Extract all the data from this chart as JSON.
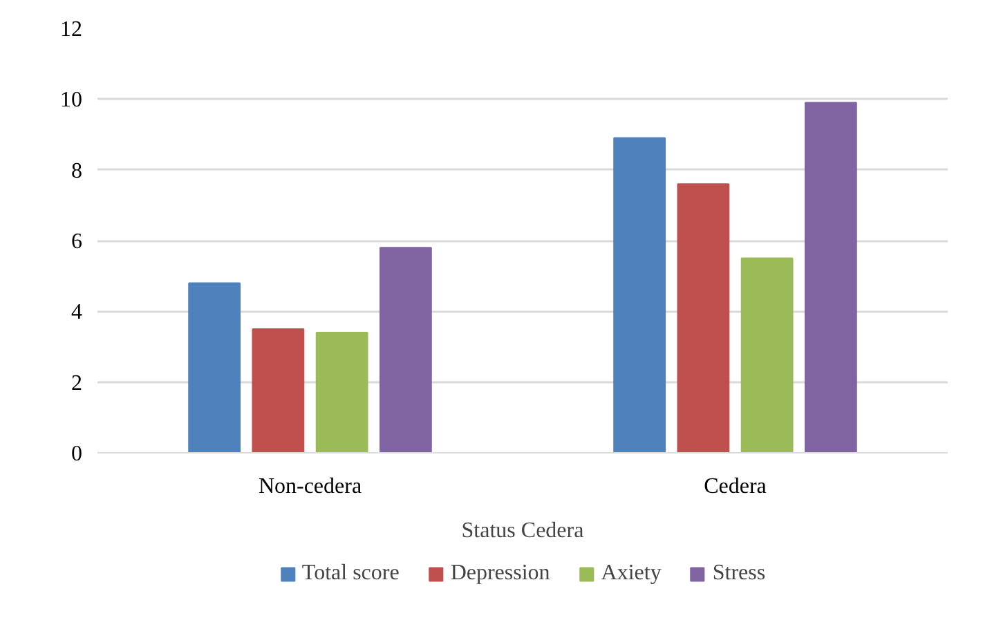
{
  "chart_data": {
    "type": "bar",
    "xlabel": "Status Cedera",
    "categories": [
      "Non-cedera",
      "Cedera"
    ],
    "series": [
      {
        "name": "Total score",
        "color": "#4f81bd",
        "values": [
          4.8,
          8.9
        ]
      },
      {
        "name": "Depression",
        "color": "#c0504d",
        "values": [
          3.5,
          7.6
        ]
      },
      {
        "name": "Axiety",
        "color": "#9bbb59",
        "values": [
          3.4,
          5.5
        ]
      },
      {
        "name": "Stress",
        "color": "#8064a2",
        "values": [
          5.8,
          9.9
        ]
      }
    ],
    "ylim": [
      0,
      12
    ],
    "yticks": [
      0,
      2,
      4,
      6,
      8,
      10,
      12
    ],
    "grid": "y",
    "legend": "bottom"
  }
}
